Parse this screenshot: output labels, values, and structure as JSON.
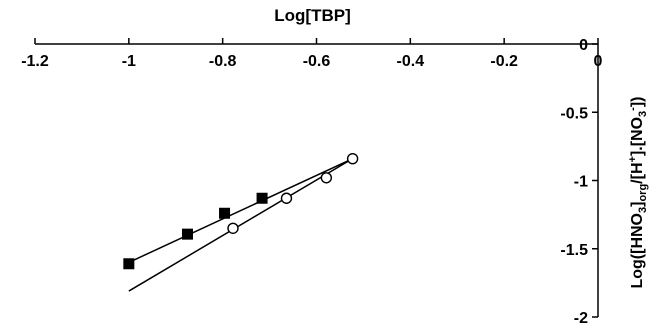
{
  "chart_data": {
    "type": "scatter",
    "title": "Log[TBP]",
    "ylabel": {
      "parts": [
        {
          "t": "Log([HNO",
          "s": "normal"
        },
        {
          "t": "3",
          "s": "sub"
        },
        {
          "t": "]",
          "s": "normal"
        },
        {
          "t": "org",
          "s": "sub"
        },
        {
          "t": "/[H",
          "s": "normal"
        },
        {
          "t": "+",
          "s": "sup"
        },
        {
          "t": "].[NO",
          "s": "normal"
        },
        {
          "t": "3",
          "s": "sub"
        },
        {
          "t": "-",
          "s": "sup"
        },
        {
          "t": "])",
          "s": "normal"
        }
      ]
    },
    "xlim": [
      -1.2,
      0
    ],
    "ylim": [
      -2,
      0
    ],
    "x_axis_position": "top",
    "y_axis_position": "right",
    "x_ticks": [
      -1.2,
      -1,
      -0.8,
      -0.6,
      -0.4,
      -0.2,
      0
    ],
    "x_tick_labels": [
      "-1.2",
      "-1",
      "-0.8",
      "-0.6",
      "-0.4",
      "-0.2",
      "0"
    ],
    "y_ticks": [
      0,
      -0.5,
      -1,
      -1.5,
      -2
    ],
    "y_tick_labels": [
      "0",
      "-0.5",
      "-1",
      "-1.5",
      "-2"
    ],
    "grid": false,
    "series": [
      {
        "marker": "filled-square",
        "color": "#000000",
        "x": [
          -1.0,
          -0.875,
          -0.796,
          -0.716
        ],
        "y": [
          -1.61,
          -1.393,
          -1.24,
          -1.13
        ],
        "fit_line": {
          "x": [
            -1.0,
            -0.523
          ],
          "y": [
            -1.6,
            -0.84
          ]
        }
      },
      {
        "marker": "open-circle",
        "color": "#000000",
        "x": [
          -0.778,
          -0.664,
          -0.579,
          -0.523
        ],
        "y": [
          -1.35,
          -1.13,
          -0.98,
          -0.84
        ],
        "fit_line": {
          "x": [
            -1.0,
            -0.523
          ],
          "y": [
            -1.81,
            -0.84
          ]
        }
      }
    ]
  }
}
